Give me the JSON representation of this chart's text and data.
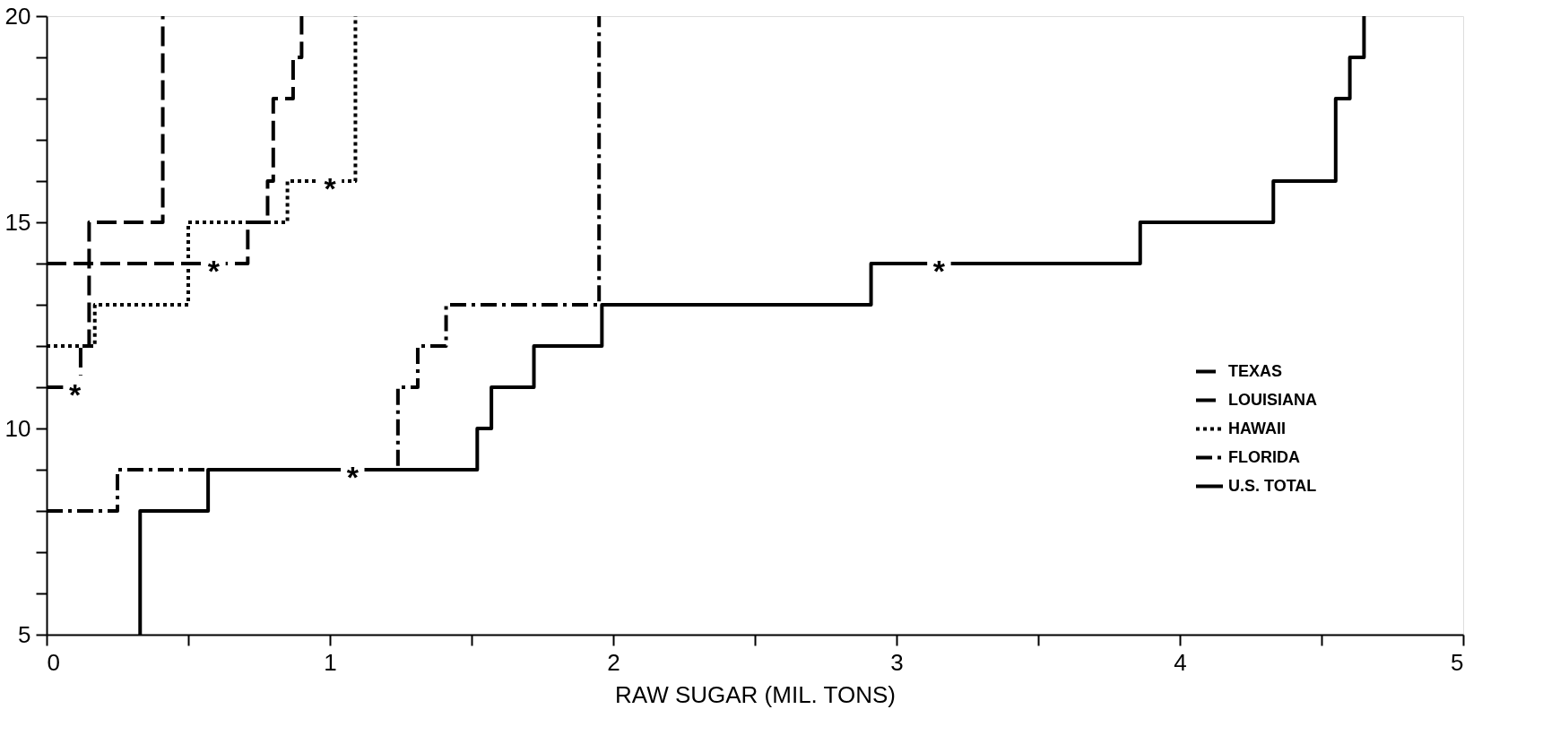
{
  "chart_data": {
    "type": "step",
    "xlabel": "RAW SUGAR (MIL. TONS)",
    "xlim": [
      0,
      5
    ],
    "ylim": [
      5,
      20
    ],
    "xticks": [
      0,
      {
        "value": 0.5,
        "label": null
      },
      1,
      {
        "value": 1.5,
        "label": null
      },
      2,
      {
        "value": 2.5,
        "label": null
      },
      3,
      {
        "value": 3.5,
        "label": null
      },
      4,
      {
        "value": 4.5,
        "label": null
      },
      5
    ],
    "yticks": [
      5,
      {
        "value": 6,
        "label": null
      },
      {
        "value": 7,
        "label": null
      },
      {
        "value": 8,
        "label": null
      },
      {
        "value": 9,
        "label": null
      },
      10,
      {
        "value": 11,
        "label": null
      },
      {
        "value": 12,
        "label": null
      },
      {
        "value": 13,
        "label": null
      },
      {
        "value": 14,
        "label": null
      },
      15,
      {
        "value": 16,
        "label": null
      },
      {
        "value": 17,
        "label": null
      },
      {
        "value": 18,
        "label": null
      },
      {
        "value": 19,
        "label": null
      },
      20
    ],
    "grid": false,
    "legend": "right",
    "series": [
      {
        "name": "TEXAS",
        "color": "#000000",
        "line_style": "dashed",
        "x": [
          0,
          0.12,
          0.15,
          0.41
        ],
        "values": [
          11,
          12,
          15,
          20
        ]
      },
      {
        "name": "LOUISIANA",
        "color": "#000000",
        "line_style": "dashed",
        "x": [
          0,
          0.71,
          0.78,
          0.8,
          0.87,
          0.9
        ],
        "values": [
          14,
          15,
          16,
          18,
          19,
          20
        ]
      },
      {
        "name": "HAWAII",
        "color": "#000000",
        "line_style": "dotted",
        "x": [
          0,
          0.17,
          0.5,
          0.85,
          1.09
        ],
        "values": [
          12,
          13,
          15,
          16,
          20
        ]
      },
      {
        "name": "FLORIDA",
        "color": "#000000",
        "line_style": "dashdot",
        "x": [
          0,
          0.25,
          1.24,
          1.31,
          1.41,
          1.95
        ],
        "values": [
          8,
          9,
          11,
          12,
          13,
          20
        ]
      },
      {
        "name": "U.S. TOTAL",
        "color": "#000000",
        "line_style": "solid",
        "x": [
          0.33,
          0.33,
          0.57,
          1.52,
          1.57,
          1.72,
          1.96,
          2.91,
          3.86,
          4.33,
          4.55,
          4.6,
          4.65
        ],
        "values": [
          5,
          8,
          9,
          10,
          11,
          12,
          13,
          14,
          15,
          16,
          18,
          19,
          20
        ]
      }
    ],
    "annotations": [
      {
        "text": "*",
        "x": 0.1,
        "y": 11
      },
      {
        "text": "*",
        "x": 0.59,
        "y": 14
      },
      {
        "text": "*",
        "x": 1.0,
        "y": 16
      },
      {
        "text": "*",
        "x": 1.08,
        "y": 9
      },
      {
        "text": "*",
        "x": 3.15,
        "y": 14
      }
    ]
  }
}
